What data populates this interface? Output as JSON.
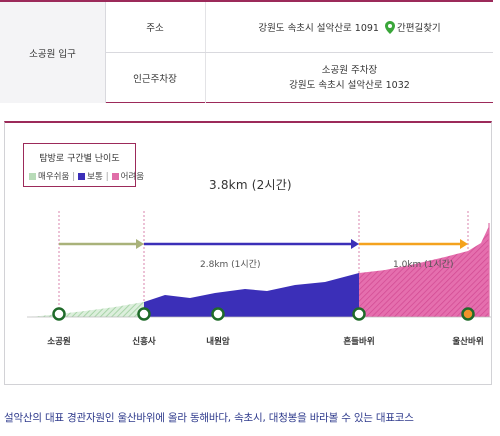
{
  "info_table": {
    "entrance_label": "소공원 입구",
    "address_label": "주소",
    "address_value": "강원도 속초시 설악산로 1091",
    "directions_label": "간편길찾기",
    "parking_label": "인근주차장",
    "parking_name": "소공원 주차장",
    "parking_address": "강원도 속초시 설악산로 1032"
  },
  "course": {
    "legend_title": "탐방로 구간별 난이도",
    "difficulty": [
      {
        "label": "매우쉬움",
        "color": "#b8dbb8"
      },
      {
        "label": "보통",
        "color": "#3b2fb8"
      },
      {
        "label": "어려움",
        "color": "#e06ea8"
      }
    ],
    "total_label": "3.8km (2시간)",
    "segments": [
      {
        "label": "2.8km (1시간)"
      },
      {
        "label": "1.0km (1시간)"
      }
    ],
    "waypoints": [
      {
        "name": "소공원"
      },
      {
        "name": "신흥사"
      },
      {
        "name": "내원암"
      },
      {
        "name": "흔들바위"
      },
      {
        "name": "울산바위"
      }
    ],
    "colors": {
      "arrow_green": "#a9b27a",
      "arrow_blue": "#3b2fb8",
      "arrow_orange": "#f4a21e",
      "waypoint_ring": "#1f6b2a",
      "destination_fill": "#f0922a"
    }
  },
  "summary": "설악산의 대표 경관자원인 울산바위에 올라 동해바다, 속초시, 대청봉을 바라볼 수 있는 대표코스"
}
